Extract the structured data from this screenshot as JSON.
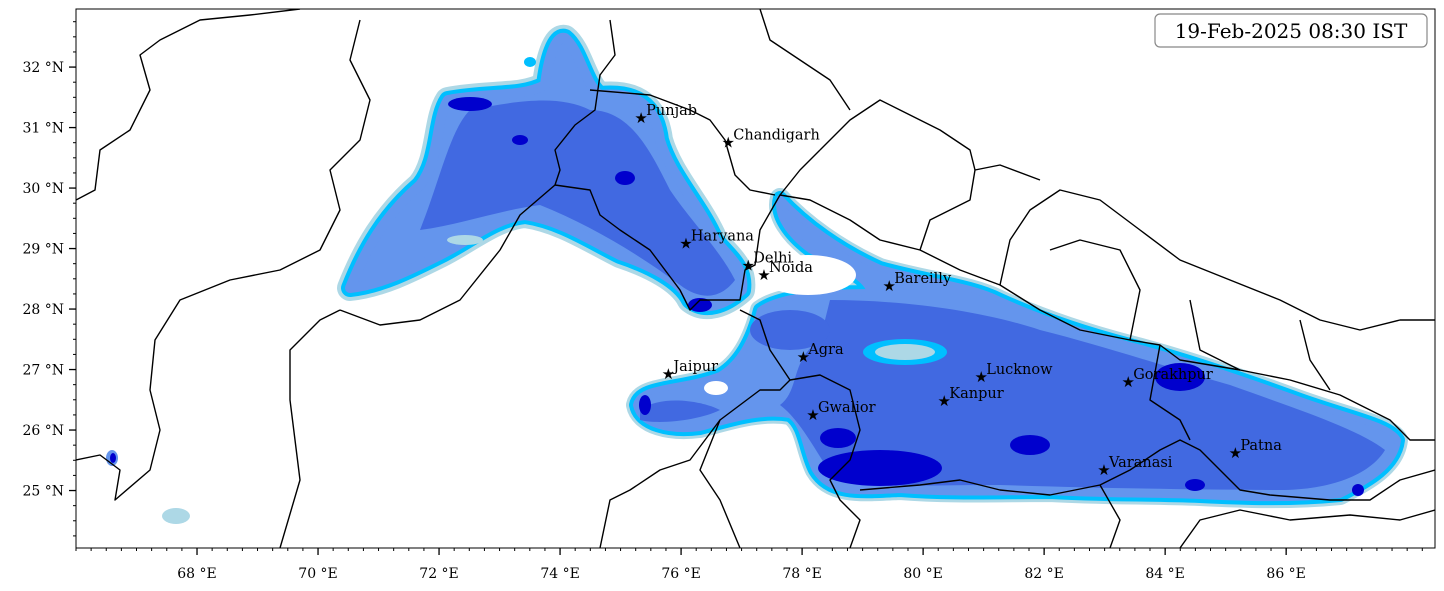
{
  "chart_data": {
    "type": "map",
    "title": "19-Feb-2025 08:30 IST",
    "xlim": [
      66.0,
      88.46
    ],
    "ylim": [
      24.05,
      32.96
    ],
    "x_ticks": [
      68,
      70,
      72,
      74,
      76,
      78,
      80,
      82,
      84,
      86
    ],
    "x_tick_labels": [
      "68 °E",
      "70 °E",
      "72 °E",
      "74 °E",
      "76 °E",
      "78 °E",
      "80 °E",
      "82 °E",
      "84 °E",
      "86 °E"
    ],
    "y_ticks": [
      25,
      26,
      27,
      28,
      29,
      30,
      31,
      32
    ],
    "y_tick_labels": [
      "25 °N",
      "26 °N",
      "27 °N",
      "28 °N",
      "29 °N",
      "30 °N",
      "31 °N",
      "32 °N"
    ],
    "fill_levels_colors": [
      "#add8e6",
      "#00bfff",
      "#6495ed",
      "#4169e1",
      "#0000cd"
    ],
    "cities": [
      {
        "name": "Punjab",
        "lon": 75.34,
        "lat": 31.16
      },
      {
        "name": "Chandigarh",
        "lon": 76.78,
        "lat": 30.75
      },
      {
        "name": "Haryana",
        "lon": 76.08,
        "lat": 29.08
      },
      {
        "name": "Delhi",
        "lon": 77.11,
        "lat": 28.72
      },
      {
        "name": "Noida",
        "lon": 77.37,
        "lat": 28.56
      },
      {
        "name": "Bareilly",
        "lon": 79.44,
        "lat": 28.38
      },
      {
        "name": "Agra",
        "lon": 78.02,
        "lat": 27.21
      },
      {
        "name": "Jaipur",
        "lon": 75.79,
        "lat": 26.93
      },
      {
        "name": "Lucknow",
        "lon": 80.96,
        "lat": 26.88
      },
      {
        "name": "Gorakhpur",
        "lon": 83.39,
        "lat": 26.79
      },
      {
        "name": "Kanpur",
        "lon": 80.35,
        "lat": 26.48
      },
      {
        "name": "Gwalior",
        "lon": 78.18,
        "lat": 26.25
      },
      {
        "name": "Varanasi",
        "lon": 82.99,
        "lat": 25.34
      },
      {
        "name": "Patna",
        "lon": 85.16,
        "lat": 25.62
      }
    ]
  }
}
